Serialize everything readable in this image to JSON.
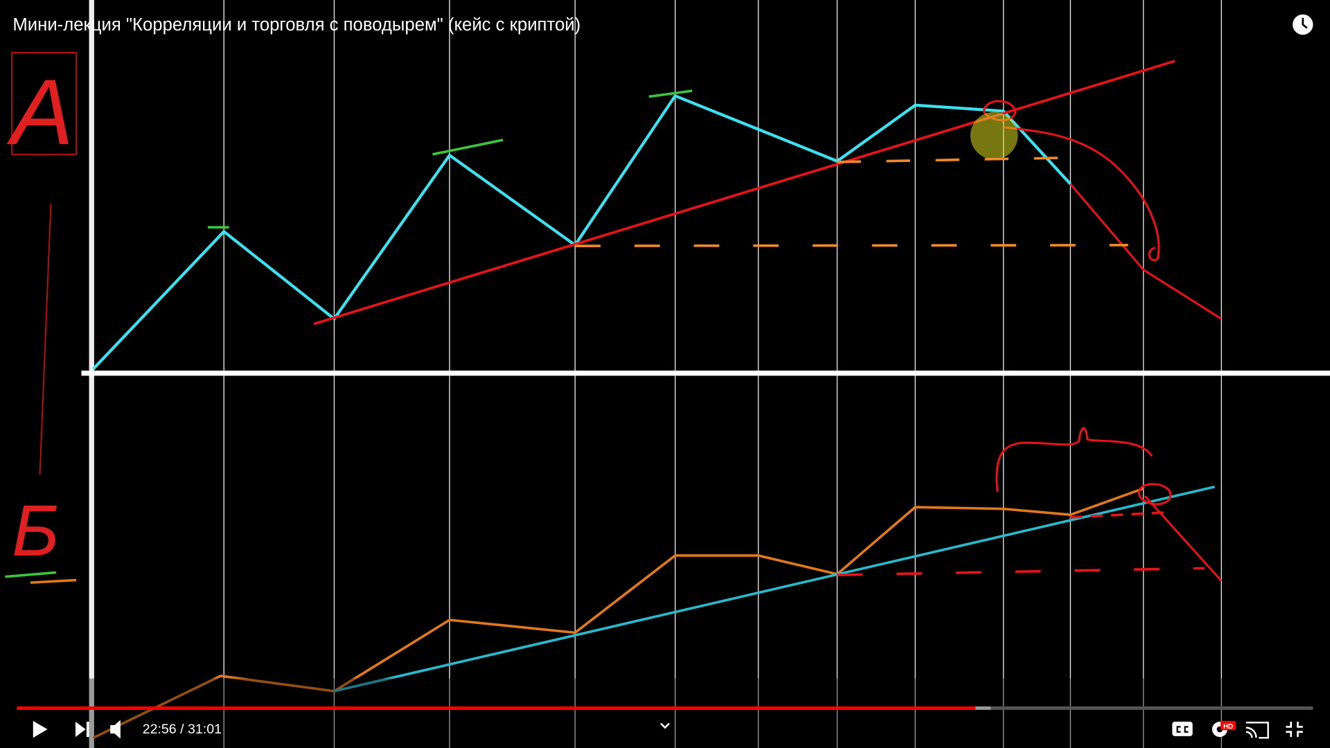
{
  "header": {
    "title": "Мини-лекция \"Корреляции и торговля с поводырем\" (кейс с криптой)"
  },
  "labels": {
    "top": "А",
    "bottom": "Б"
  },
  "controls": {
    "time": "22:56 / 31:01",
    "quality_badge": "HD"
  }
}
